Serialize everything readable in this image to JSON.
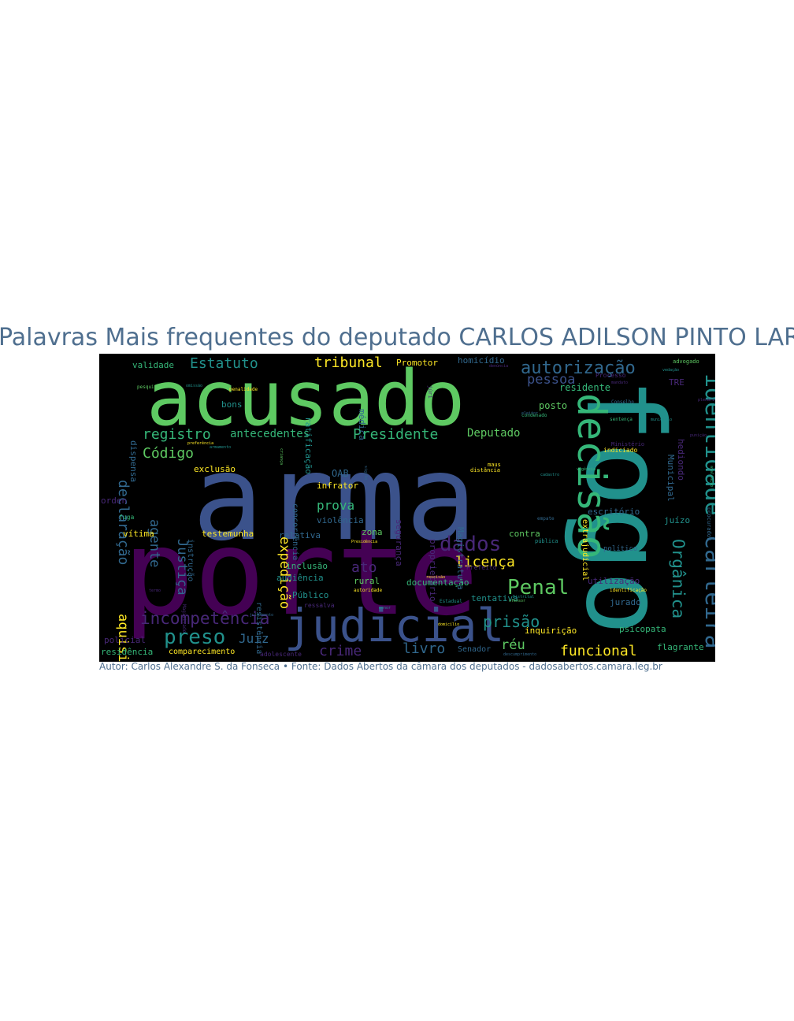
{
  "title": "Palavras Mais frequentes do deputado CARLOS ADILSON PINTO LARA",
  "caption": "Autor: Carlos Alexandre S. da Fonseca • Fonte: Dados Abertos da câmara dos deputados - dadosabertos.camara.leg.br",
  "colors": {
    "text": "#4f6f8f",
    "background": "#000000",
    "palette": [
      "#440154",
      "#3b528b",
      "#21918c",
      "#5ec962",
      "#fde725",
      "#482878",
      "#31688e",
      "#35b779"
    ]
  },
  "words": [
    {
      "text": "arma",
      "c": "#3b528b"
    },
    {
      "text": "porte",
      "c": "#440154"
    },
    {
      "text": "acusado",
      "c": "#5ec962"
    },
    {
      "text": "fogo",
      "c": "#21918c"
    },
    {
      "text": "judicial",
      "c": "#3b528b"
    },
    {
      "text": "decisão",
      "c": "#35b779"
    },
    {
      "text": "identidade",
      "c": "#21918c"
    },
    {
      "text": "carteira",
      "c": "#31688e"
    },
    {
      "text": "autorização",
      "c": "#31688e"
    },
    {
      "text": "dados",
      "c": "#482878"
    },
    {
      "text": "Penal",
      "c": "#5ec962"
    },
    {
      "text": "preso",
      "c": "#21918c"
    },
    {
      "text": "incompetência",
      "c": "#482878"
    },
    {
      "text": "Presidente",
      "c": "#35b779"
    },
    {
      "text": "antecedentes",
      "c": "#35b779"
    },
    {
      "text": "registro",
      "c": "#35b779"
    },
    {
      "text": "Código",
      "c": "#5ec962"
    },
    {
      "text": "declaração",
      "c": "#31688e"
    },
    {
      "text": "Estatuto",
      "c": "#21918c"
    },
    {
      "text": "tribunal",
      "c": "#fde725"
    },
    {
      "text": "pessoa",
      "c": "#3b528b"
    },
    {
      "text": "Orgânica",
      "c": "#21918c"
    },
    {
      "text": "prisão",
      "c": "#21918c"
    },
    {
      "text": "licença",
      "c": "#fde725"
    },
    {
      "text": "funcional",
      "c": "#fde725"
    },
    {
      "text": "crime",
      "c": "#482878"
    },
    {
      "text": "livro",
      "c": "#31688e"
    },
    {
      "text": "Juiz",
      "c": "#31688e"
    },
    {
      "text": "ato",
      "c": "#482878"
    },
    {
      "text": "prova",
      "c": "#35b779"
    },
    {
      "text": "aquisição",
      "c": "#fde725"
    },
    {
      "text": "agente",
      "c": "#31688e"
    },
    {
      "text": "Justiça",
      "c": "#31688e"
    },
    {
      "text": "expedição",
      "c": "#fde725"
    },
    {
      "text": "Deputado",
      "c": "#5ec962"
    },
    {
      "text": "réu",
      "c": "#5ec962"
    },
    {
      "text": "Municipal",
      "c": "#31688e"
    },
    {
      "text": "hediondo",
      "c": "#482878"
    },
    {
      "text": "TRE",
      "c": "#482878"
    },
    {
      "text": "residente",
      "c": "#35b779"
    },
    {
      "text": "posto",
      "c": "#5ec962"
    },
    {
      "text": "validade",
      "c": "#35b779"
    },
    {
      "text": "dispensa",
      "c": "#31688e"
    },
    {
      "text": "bons",
      "c": "#21918c"
    },
    {
      "text": "ratificação",
      "c": "#21918c"
    },
    {
      "text": "médica",
      "c": "#31688e"
    },
    {
      "text": "homicídio",
      "c": "#31688e"
    },
    {
      "text": "Promotor",
      "c": "#fde725"
    },
    {
      "text": "exclusão",
      "c": "#fde725"
    },
    {
      "text": "OAB",
      "c": "#31688e"
    },
    {
      "text": "concorrência",
      "c": "#31688e"
    },
    {
      "text": "infrator",
      "c": "#fde725"
    },
    {
      "text": "orden",
      "c": "#482878"
    },
    {
      "text": "instrução",
      "c": "#31688e"
    },
    {
      "text": "vítima",
      "c": "#fde725"
    },
    {
      "text": "testemunha",
      "c": "#fde725"
    },
    {
      "text": "relativa",
      "c": "#31688e"
    },
    {
      "text": "violência",
      "c": "#31688e"
    },
    {
      "text": "zona",
      "c": "#5ec962"
    },
    {
      "text": "segurança",
      "c": "#482878"
    },
    {
      "text": "proprietário",
      "c": "#482878"
    },
    {
      "text": "Magistratura",
      "c": "#31688e"
    },
    {
      "text": "inclusão",
      "c": "#35b779"
    },
    {
      "text": "audiência",
      "c": "#21918c"
    },
    {
      "text": "rural",
      "c": "#5ec962"
    },
    {
      "text": "resistência",
      "c": "#31688e"
    },
    {
      "text": "Público",
      "c": "#21918c"
    },
    {
      "text": "documentação",
      "c": "#35b779"
    },
    {
      "text": "tentativa",
      "c": "#21918c"
    },
    {
      "text": "contra",
      "c": "#5ec962"
    },
    {
      "text": "extrajudicial",
      "c": "#fde725"
    },
    {
      "text": "escritório",
      "c": "#31688e"
    },
    {
      "text": "juízo",
      "c": "#21918c"
    },
    {
      "text": "utilização",
      "c": "#482878"
    },
    {
      "text": "jurado",
      "c": "#31688e"
    },
    {
      "text": "psicopata",
      "c": "#35b779"
    },
    {
      "text": "flagrante",
      "c": "#35b779"
    },
    {
      "text": "inquirição",
      "c": "#fde725"
    },
    {
      "text": "Senador",
      "c": "#31688e"
    },
    {
      "text": "comparecimento",
      "c": "#fde725"
    },
    {
      "text": "residência",
      "c": "#35b779"
    },
    {
      "text": "policial",
      "c": "#482878"
    },
    {
      "text": "adolescente",
      "c": "#482878"
    },
    {
      "text": "ressalva",
      "c": "#482878"
    },
    {
      "text": "fuga",
      "c": "#35b779"
    },
    {
      "text": "político",
      "c": "#31688e"
    },
    {
      "text": "indiciado",
      "c": "#fde725"
    },
    {
      "text": "advogado",
      "c": "#5ec962"
    },
    {
      "text": "procurador",
      "c": "#31688e"
    },
    {
      "text": "maus",
      "c": "#fde725"
    },
    {
      "text": "distância",
      "c": "#fde725"
    },
    {
      "text": "Ministério",
      "c": "#482878"
    },
    {
      "text": "pública",
      "c": "#21918c"
    },
    {
      "text": "condenado",
      "c": "#35b779"
    },
    {
      "text": "júri",
      "c": "#482878"
    },
    {
      "text": "Estadual",
      "c": "#21918c"
    },
    {
      "text": "empate",
      "c": "#31688e"
    },
    {
      "text": "autoridade",
      "c": "#fde725"
    },
    {
      "text": "julgamento",
      "c": "#31688e"
    },
    {
      "text": "denúncia",
      "c": "#482878"
    },
    {
      "text": "Conselho",
      "c": "#31688e"
    },
    {
      "text": "sentença",
      "c": "#35b779"
    },
    {
      "text": "sigilo",
      "c": "#31688e"
    },
    {
      "text": "Prefeito",
      "c": "#482878"
    },
    {
      "text": "Processo",
      "c": "#482878"
    },
    {
      "text": "preferência",
      "c": "#fde725"
    },
    {
      "text": "penalidade",
      "c": "#fde725"
    },
    {
      "text": "pesquisa",
      "c": "#5ec962"
    },
    {
      "text": "eleitor",
      "c": "#31688e"
    },
    {
      "text": "identificação",
      "c": "#fde725"
    },
    {
      "text": "criança",
      "c": "#5ec962"
    },
    {
      "text": "Magistrado",
      "c": "#482878"
    },
    {
      "text": "menor",
      "c": "#21918c"
    },
    {
      "text": "descumprimento",
      "c": "#31688e"
    },
    {
      "text": "avaliação",
      "c": "#35b779"
    },
    {
      "text": "vedação",
      "c": "#21918c"
    },
    {
      "text": "armamento",
      "c": "#21918c"
    },
    {
      "text": "punição",
      "c": "#482878"
    },
    {
      "text": "rescisão",
      "c": "#fde725"
    },
    {
      "text": "omissão",
      "c": "#21918c"
    },
    {
      "text": "Presidência",
      "c": "#fde725"
    },
    {
      "text": "Distrital",
      "c": "#21918c"
    },
    {
      "text": "ofensor",
      "c": "#5ec962"
    },
    {
      "text": "termo",
      "c": "#482878"
    },
    {
      "text": "cadastro",
      "c": "#21918c"
    },
    {
      "text": "vigência",
      "c": "#35b779"
    },
    {
      "text": "mandato",
      "c": "#482878"
    },
    {
      "text": "município",
      "c": "#21918c"
    },
    {
      "text": "domicílio",
      "c": "#fde725"
    },
    {
      "text": "plenário",
      "c": "#482878"
    }
  ]
}
